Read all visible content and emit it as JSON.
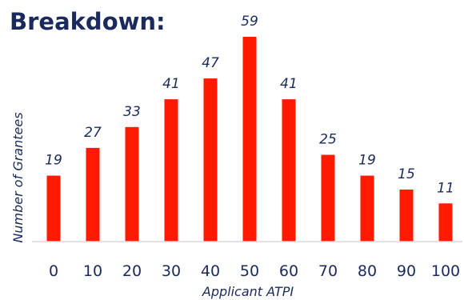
{
  "chart_data": {
    "type": "bar",
    "title": "Breakdown:",
    "xlabel": "Applicant ATPI",
    "ylabel": "Number of Grantees",
    "categories": [
      "0",
      "10",
      "20",
      "30",
      "40",
      "50",
      "60",
      "70",
      "80",
      "90",
      "100"
    ],
    "values": [
      19,
      27,
      33,
      41,
      47,
      59,
      41,
      25,
      19,
      15,
      11
    ],
    "ylim": [
      0,
      59
    ],
    "grid": false,
    "legend": "none",
    "bar_color": "#ff1a00",
    "text_color": "#1b2a5c"
  }
}
